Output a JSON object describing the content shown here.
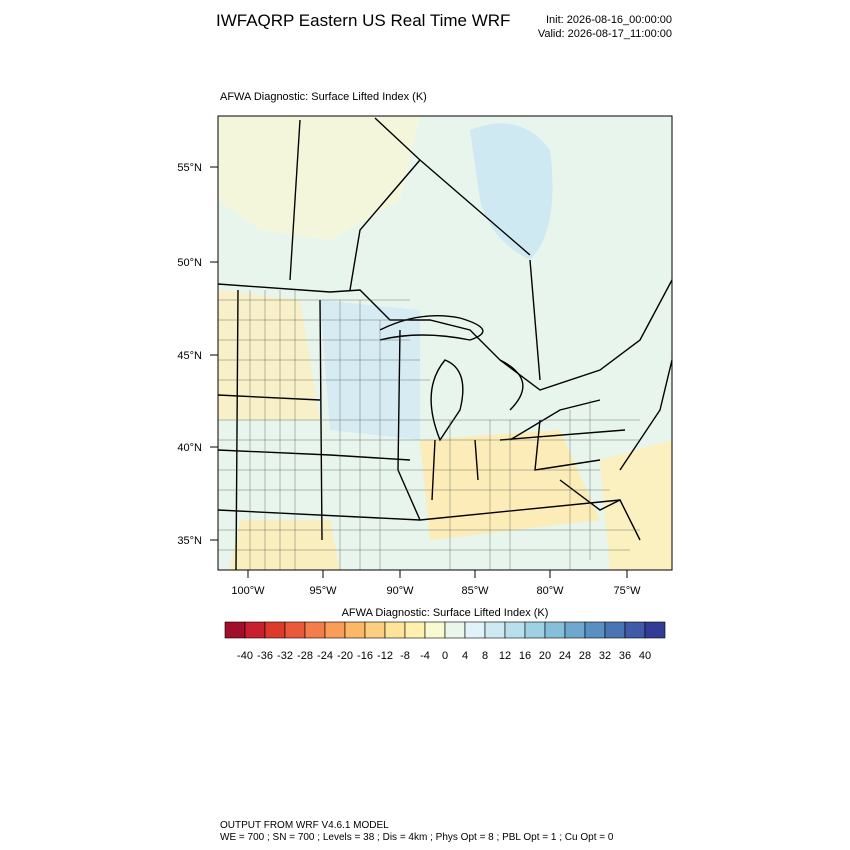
{
  "header": {
    "title": "IWFAQRP Eastern US Real Time WRF",
    "init": "Init: 2026-08-16_00:00:00",
    "valid": "Valid: 2026-08-17_11:00:00"
  },
  "map": {
    "title": "AFWA Diagnostic: Surface Lifted Index   (K)",
    "lat_labels": [
      "55°N",
      "50°N",
      "45°N",
      "40°N",
      "35°N"
    ],
    "lon_labels": [
      "100°W",
      "95°W",
      "90°W",
      "85°W",
      "80°W",
      "75°W"
    ]
  },
  "colorbar": {
    "title": "AFWA Diagnostic: Surface Lifted Index  (K)",
    "labels": [
      -40,
      -36,
      -32,
      -28,
      -24,
      -20,
      -16,
      -12,
      -8,
      -4,
      0,
      4,
      8,
      12,
      16,
      20,
      24,
      28,
      32,
      36,
      40
    ],
    "colors": [
      "#a0102a",
      "#c8202f",
      "#dc3b2c",
      "#ea5a3a",
      "#f47d4c",
      "#f99d59",
      "#fbb867",
      "#fdcf80",
      "#fee49a",
      "#fff0b0",
      "#fafad0",
      "#e8f6ec",
      "#e0f3f8",
      "#cdeaf2",
      "#b8e0ec",
      "#9fd1e4",
      "#86bfda",
      "#6ea8cf",
      "#5990c2",
      "#4a75b4",
      "#3f5aa6",
      "#323c96"
    ]
  },
  "footer": {
    "line1": "OUTPUT FROM WRF V4.6.1 MODEL",
    "line2": "WE = 700 ; SN = 700 ; Levels = 38 ; Dis = 4km ; Phys Opt = 8 ; PBL Opt = 1 ; Cu Opt = 0"
  }
}
